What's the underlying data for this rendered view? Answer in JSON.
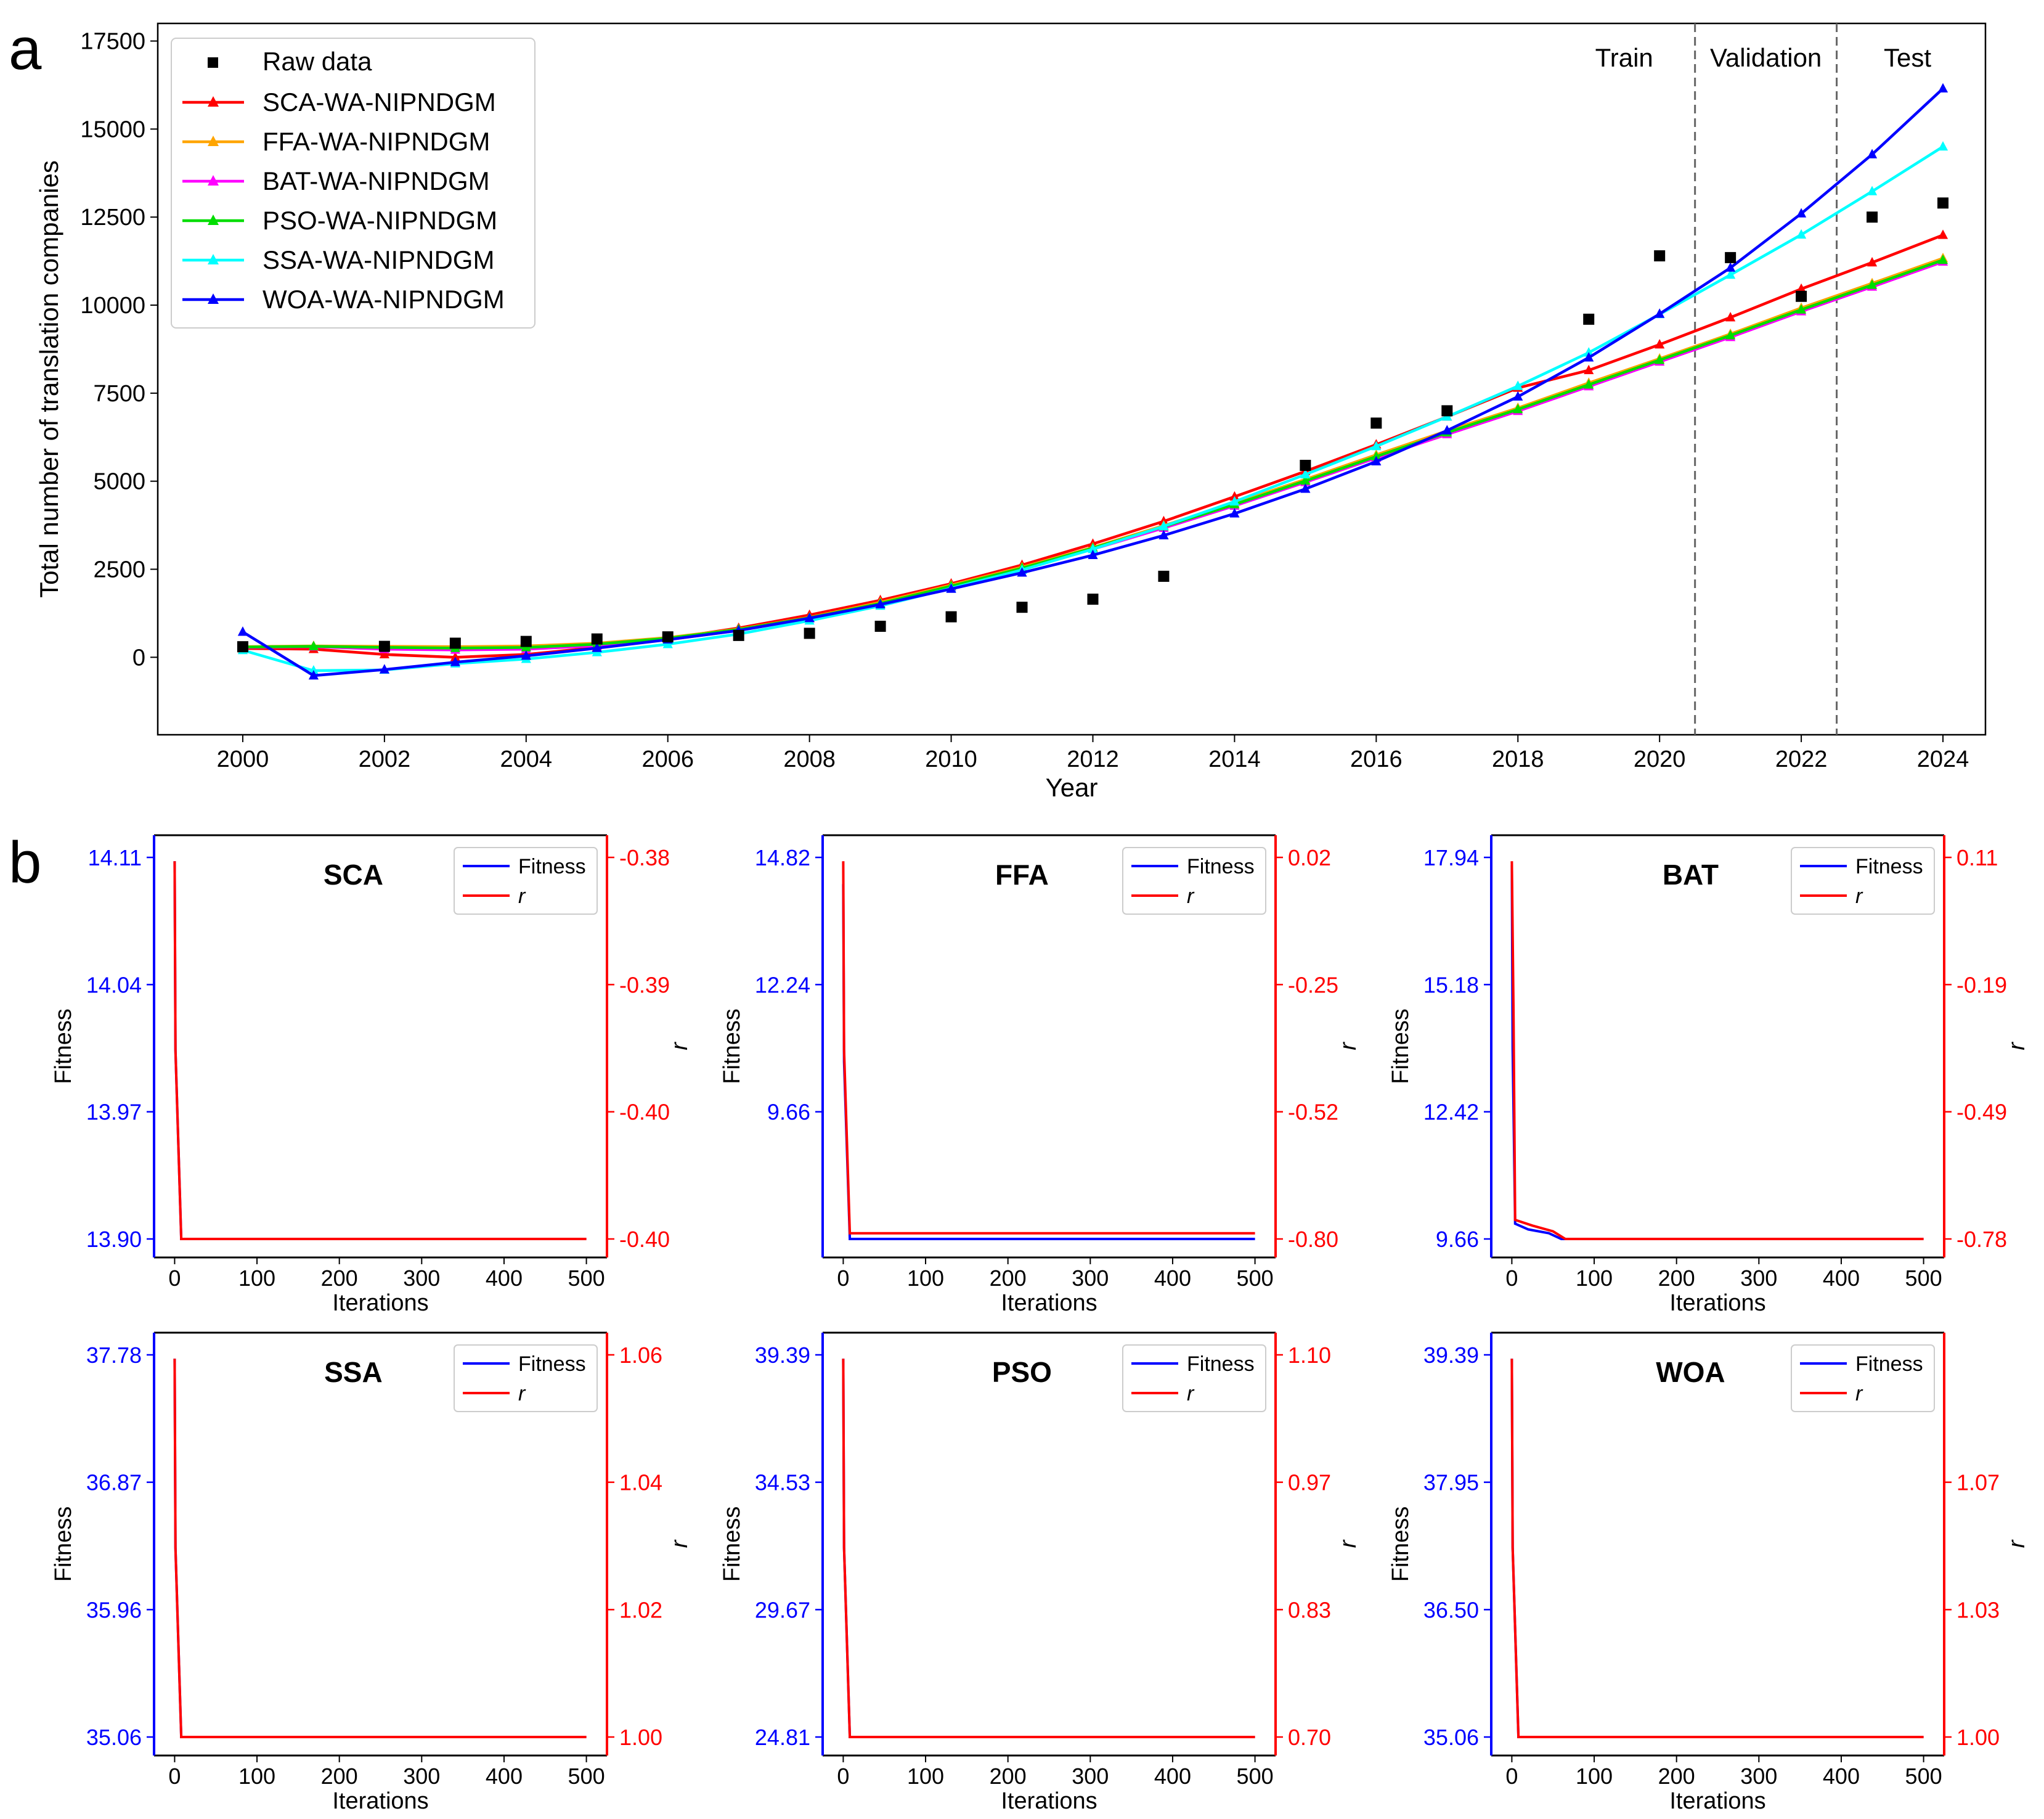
{
  "panel_labels": [
    "a",
    "b"
  ],
  "chart_data": [
    {
      "id": "a",
      "type": "line",
      "xlabel": "Year",
      "ylabel": "Total number of translation companies",
      "xlim": [
        1998.8,
        2024.6
      ],
      "ylim": [
        -2200,
        18000
      ],
      "xticks": [
        2000,
        2002,
        2004,
        2006,
        2008,
        2010,
        2012,
        2014,
        2016,
        2018,
        2020,
        2022,
        2024
      ],
      "xtick_labels": [
        "2000",
        "2002",
        "2004",
        "2006",
        "2008",
        "2010",
        "2012",
        "2014",
        "2016",
        "2018",
        "2020",
        "2022",
        "2024"
      ],
      "yticks": [
        0,
        2500,
        5000,
        7500,
        10000,
        12500,
        15000,
        17500
      ],
      "ytick_labels": [
        "0",
        "2500",
        "5000",
        "7500",
        "10000",
        "12500",
        "15000",
        "17500"
      ],
      "legend_position": "top-left",
      "split_lines": [
        2020.5,
        2022.5
      ],
      "regions": [
        {
          "label": "Train",
          "x": 2019.5
        },
        {
          "label": "Validation",
          "x": 2021.5
        },
        {
          "label": "Test",
          "x": 2023.5
        }
      ],
      "x": [
        2000,
        2001,
        2002,
        2003,
        2004,
        2005,
        2006,
        2007,
        2008,
        2009,
        2010,
        2011,
        2012,
        2013,
        2014,
        2015,
        2016,
        2017,
        2018,
        2019,
        2020,
        2021,
        2022,
        2023,
        2024
      ],
      "raw": {
        "name": "Raw data",
        "color": "#000000",
        "x": [
          2000,
          2002,
          2003,
          2004,
          2005,
          2006,
          2007,
          2008,
          2009,
          2010,
          2011,
          2012,
          2013,
          2015,
          2016,
          2017,
          2019,
          2020,
          2021,
          2022,
          2023,
          2024
        ],
        "values": [
          300,
          310,
          400,
          450,
          520,
          580,
          620,
          680,
          880,
          1150,
          1420,
          1650,
          2300,
          5450,
          6650,
          7000,
          9600,
          11400,
          11350,
          10250,
          12500,
          12900
        ]
      },
      "series": [
        {
          "name": "SCA-WA-NIPNDGM",
          "color": "#ff0000",
          "values": [
            250,
            230,
            80,
            0,
            80,
            280,
            530,
            830,
            1200,
            1620,
            2090,
            2620,
            3220,
            3860,
            4560,
            5280,
            6040,
            6830,
            7650,
            8150,
            8880,
            9650,
            10460,
            11210,
            11990
          ]
        },
        {
          "name": "FFA-WA-NIPNDGM",
          "color": "#ffa500",
          "values": [
            300,
            320,
            310,
            300,
            320,
            400,
            560,
            800,
            1130,
            1560,
            2050,
            2560,
            3120,
            3740,
            4380,
            5050,
            5750,
            6430,
            7080,
            7790,
            8480,
            9180,
            9920,
            10620,
            11330
          ]
        },
        {
          "name": "BAT-WA-NIPNDGM",
          "color": "#ff00ff",
          "values": [
            280,
            300,
            230,
            210,
            230,
            330,
            500,
            760,
            1100,
            1500,
            1990,
            2500,
            3070,
            3670,
            4300,
            4970,
            5660,
            6330,
            6990,
            7690,
            8390,
            9090,
            9820,
            10520,
            11230
          ]
        },
        {
          "name": "PSO-WA-NIPNDGM",
          "color": "#00dd00",
          "values": [
            290,
            310,
            280,
            260,
            280,
            370,
            540,
            790,
            1120,
            1530,
            2020,
            2530,
            3100,
            3710,
            4340,
            5010,
            5700,
            6380,
            7040,
            7740,
            8440,
            9140,
            9870,
            10570,
            11280
          ]
        },
        {
          "name": "SSA-WA-NIPNDGM",
          "color": "#00ffff",
          "values": [
            200,
            -380,
            -360,
            -180,
            -50,
            140,
            370,
            660,
            1040,
            1460,
            1960,
            2480,
            3070,
            3720,
            4420,
            5190,
            5990,
            6830,
            7700,
            8650,
            9740,
            10860,
            12000,
            13230,
            14500
          ]
        },
        {
          "name": "WOA-WA-NIPNDGM",
          "color": "#0000ff",
          "values": [
            720,
            -520,
            -350,
            -140,
            40,
            260,
            500,
            760,
            1110,
            1500,
            1940,
            2400,
            2900,
            3460,
            4080,
            4780,
            5560,
            6440,
            7400,
            8510,
            9750,
            11060,
            12600,
            14280,
            16150
          ]
        }
      ]
    },
    {
      "id": "b-sca",
      "title": "SCA",
      "type": "line",
      "xlabel": "Iterations",
      "ylabel_left": "Fitness",
      "ylabel_right": "r",
      "xticks": [
        0,
        100,
        200,
        300,
        400,
        500
      ],
      "xtick_labels": [
        "0",
        "100",
        "200",
        "300",
        "400",
        "500"
      ],
      "fitness_ticks": [
        "13.90",
        "13.97",
        "14.04",
        "14.11"
      ],
      "r_ticks": [
        "-0.40",
        "-0.40",
        "-0.39",
        "-0.38"
      ],
      "legend": [
        "Fitness",
        "r"
      ],
      "fitness_color": "#0000ff",
      "r_color": "#ff0000",
      "fitness_start": 0.99,
      "fitness_end": 0.0,
      "r_start": 0.99,
      "r_end": 0.0
    },
    {
      "id": "b-ffa",
      "title": "FFA",
      "type": "line",
      "xlabel": "Iterations",
      "ylabel_left": "Fitness",
      "ylabel_right": "r",
      "xticks": [
        0,
        100,
        200,
        300,
        400,
        500
      ],
      "xtick_labels": [
        "0",
        "100",
        "200",
        "300",
        "400",
        "500"
      ],
      "fitness_ticks": [
        "9.66",
        "12.24",
        "14.82"
      ],
      "r_ticks": [
        "-0.80",
        "-0.52",
        "-0.25",
        "0.02"
      ],
      "legend": [
        "Fitness",
        "r"
      ],
      "fitness_color": "#0000ff",
      "r_color": "#ff0000",
      "fitness_start": 0.93,
      "fitness_end": 0.0,
      "r_start": 0.99,
      "r_end": 0.015
    },
    {
      "id": "b-bat",
      "title": "BAT",
      "type": "line",
      "xlabel": "Iterations",
      "ylabel_left": "Fitness",
      "ylabel_right": "r",
      "xticks": [
        0,
        100,
        200,
        300,
        400,
        500
      ],
      "xtick_labels": [
        "0",
        "100",
        "200",
        "300",
        "400",
        "500"
      ],
      "fitness_ticks": [
        "9.66",
        "12.42",
        "15.18",
        "17.94"
      ],
      "r_ticks": [
        "-0.78",
        "-0.49",
        "-0.19",
        "0.11"
      ],
      "legend": [
        "Fitness",
        "r"
      ],
      "fitness_color": "#0000ff",
      "r_color": "#ff0000",
      "fitness_start": 0.98,
      "fitness_end": 0.0,
      "r_start": 0.99,
      "r_end": 0.0
    },
    {
      "id": "b-ssa",
      "title": "SSA",
      "type": "line",
      "xlabel": "Iterations",
      "ylabel_left": "Fitness",
      "ylabel_right": "r",
      "xticks": [
        0,
        100,
        200,
        300,
        400,
        500
      ],
      "xtick_labels": [
        "0",
        "100",
        "200",
        "300",
        "400",
        "500"
      ],
      "fitness_ticks": [
        "35.06",
        "35.96",
        "36.87",
        "37.78"
      ],
      "r_ticks": [
        "1.00",
        "1.02",
        "1.04",
        "1.06"
      ],
      "legend": [
        "Fitness",
        "r"
      ],
      "fitness_color": "#0000ff",
      "r_color": "#ff0000",
      "fitness_start": 0.99,
      "fitness_end": 0.0,
      "r_start": 0.99,
      "r_end": 0.0
    },
    {
      "id": "b-pso",
      "title": "PSO",
      "type": "line",
      "xlabel": "Iterations",
      "ylabel_left": "Fitness",
      "ylabel_right": "r",
      "xticks": [
        0,
        100,
        200,
        300,
        400,
        500
      ],
      "xtick_labels": [
        "0",
        "100",
        "200",
        "300",
        "400",
        "500"
      ],
      "fitness_ticks": [
        "24.81",
        "29.67",
        "34.53",
        "39.39"
      ],
      "r_ticks": [
        "0.70",
        "0.83",
        "0.97",
        "1.10"
      ],
      "legend": [
        "Fitness",
        "r"
      ],
      "fitness_color": "#0000ff",
      "r_color": "#ff0000",
      "fitness_start": 0.99,
      "fitness_end": 0.0,
      "r_start": 0.99,
      "r_end": 0.0
    },
    {
      "id": "b-woa",
      "title": "WOA",
      "type": "line",
      "xlabel": "Iterations",
      "ylabel_left": "Fitness",
      "ylabel_right": "r",
      "xticks": [
        0,
        100,
        200,
        300,
        400,
        500
      ],
      "xtick_labels": [
        "0",
        "100",
        "200",
        "300",
        "400",
        "500"
      ],
      "fitness_ticks": [
        "35.06",
        "36.50",
        "37.95",
        "39.39"
      ],
      "r_ticks": [
        "1.00",
        "1.03",
        "1.07"
      ],
      "legend": [
        "Fitness",
        "r"
      ],
      "fitness_color": "#0000ff",
      "r_color": "#ff0000",
      "fitness_start": 0.99,
      "fitness_end": 0.0,
      "r_start": 0.99,
      "r_end": 0.0
    }
  ]
}
